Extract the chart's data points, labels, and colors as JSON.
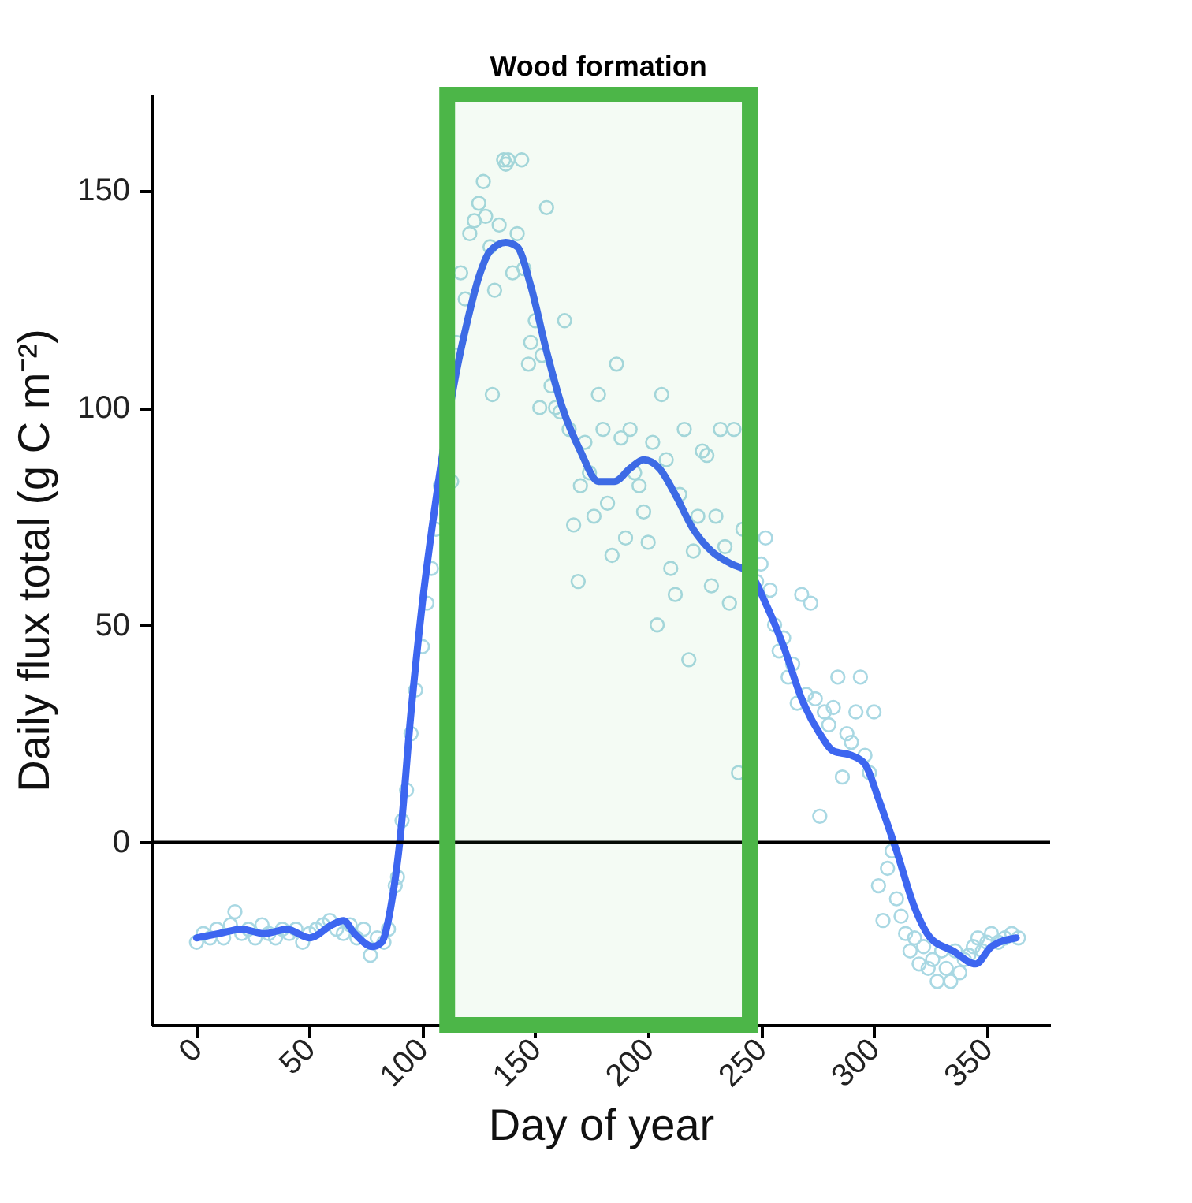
{
  "chart_data": {
    "type": "scatter",
    "xlabel": "Day of year",
    "ylabel": "Daily flux total  (g C m⁻²)",
    "xlim": [
      -20,
      378
    ],
    "ylim": [
      -42,
      172
    ],
    "xticks": [
      0,
      50,
      100,
      150,
      200,
      250,
      300,
      350
    ],
    "yticks": [
      0,
      50,
      100,
      150
    ],
    "grid": false,
    "line_style": "solid",
    "ref_lines": [
      {
        "axis": "y",
        "value": 0,
        "color": "#000000"
      }
    ],
    "bands": [
      {
        "axis": "x",
        "from": 111,
        "to": 245,
        "label": "Wood formation",
        "color": "#4cb648"
      }
    ],
    "series": [
      {
        "color": "#a9d8e3",
        "marker": "circle",
        "x": [
          0,
          3,
          6,
          9,
          12,
          15,
          17,
          20,
          23,
          26,
          29,
          32,
          35,
          38,
          41,
          44,
          47,
          50,
          53,
          56,
          59,
          62,
          65,
          68,
          71,
          74,
          77,
          80,
          83,
          85,
          88,
          89,
          91,
          93,
          95,
          97,
          100,
          102,
          104,
          106,
          108,
          113,
          115,
          117,
          119,
          121,
          123,
          125,
          127,
          128,
          130,
          131,
          132,
          134,
          136,
          137,
          138,
          140,
          142,
          144,
          145,
          147,
          148,
          150,
          152,
          153,
          155,
          157,
          159,
          161,
          163,
          165,
          167,
          169,
          170,
          172,
          174,
          176,
          178,
          180,
          182,
          184,
          186,
          188,
          190,
          192,
          194,
          196,
          198,
          200,
          202,
          204,
          206,
          208,
          210,
          212,
          214,
          216,
          218,
          220,
          222,
          224,
          226,
          228,
          230,
          232,
          234,
          236,
          238,
          240,
          242,
          248,
          250,
          252,
          254,
          256,
          258,
          260,
          262,
          264,
          266,
          268,
          270,
          272,
          274,
          276,
          278,
          280,
          282,
          284,
          286,
          288,
          290,
          292,
          294,
          296,
          298,
          300,
          302,
          304,
          306,
          308,
          310,
          312,
          314,
          316,
          318,
          320,
          322,
          324,
          326,
          328,
          330,
          332,
          334,
          336,
          338,
          340,
          342,
          344,
          346,
          348,
          350,
          352,
          355,
          358,
          361,
          364
        ],
        "values": [
          -23,
          -21,
          -22,
          -20,
          -22,
          -19,
          -16,
          -21,
          -20,
          -22,
          -19,
          -21,
          -22,
          -20,
          -21,
          -20,
          -23,
          -21,
          -20,
          -19,
          -18,
          -20,
          -21,
          -19,
          -22,
          -20,
          -26,
          -22,
          -23,
          -20,
          -10,
          -8,
          5,
          12,
          25,
          35,
          45,
          55,
          63,
          72,
          82,
          83,
          115,
          131,
          125,
          140,
          143,
          147,
          152,
          144,
          137,
          103,
          127,
          142,
          157,
          156,
          157,
          131,
          140,
          157,
          132,
          110,
          115,
          120,
          100,
          112,
          146,
          105,
          100,
          99,
          120,
          95,
          73,
          60,
          82,
          92,
          85,
          75,
          103,
          95,
          78,
          66,
          110,
          93,
          70,
          95,
          85,
          82,
          76,
          69,
          92,
          50,
          103,
          88,
          63,
          57,
          80,
          95,
          42,
          67,
          75,
          90,
          89,
          59,
          75,
          95,
          68,
          55,
          95,
          16,
          72,
          60,
          64,
          70,
          58,
          50,
          44,
          47,
          38,
          41,
          32,
          57,
          34,
          55,
          33,
          6,
          30,
          27,
          31,
          38,
          15,
          25,
          23,
          30,
          38,
          20,
          16,
          30,
          -10,
          -18,
          -6,
          -2,
          -13,
          -17,
          -21,
          -25,
          -22,
          -28,
          -24,
          -29,
          -27,
          -32,
          -25,
          -29,
          -32,
          -25,
          -30,
          -27,
          -26,
          -24,
          -22,
          -25,
          -23,
          -21,
          -23,
          -22,
          -21,
          -22
        ]
      },
      {
        "type": "line",
        "color": "#3d66f0",
        "marker": "none",
        "x": [
          0,
          10,
          20,
          30,
          40,
          50,
          60,
          65,
          70,
          78,
          82,
          86,
          90,
          95,
          100,
          105,
          115,
          120,
          125,
          130,
          137,
          142,
          148,
          155,
          162,
          170,
          178,
          185,
          192,
          198,
          205,
          212,
          220,
          228,
          237,
          245,
          252,
          260,
          268,
          276,
          282,
          290,
          296,
          302,
          310,
          318,
          325,
          335,
          345,
          352,
          363
        ],
        "values": [
          -22,
          -21,
          -20,
          -21,
          -20,
          -22,
          -19,
          -18,
          -21,
          -24,
          -23,
          -15,
          0,
          30,
          55,
          75,
          108,
          120,
          130,
          136,
          138,
          137,
          128,
          113,
          100,
          90,
          83,
          83,
          86,
          88,
          86,
          80,
          72,
          67,
          64,
          62,
          55,
          45,
          33,
          25,
          21,
          20,
          18,
          10,
          -2,
          -15,
          -22,
          -25,
          -28,
          -24,
          -22
        ]
      }
    ]
  }
}
